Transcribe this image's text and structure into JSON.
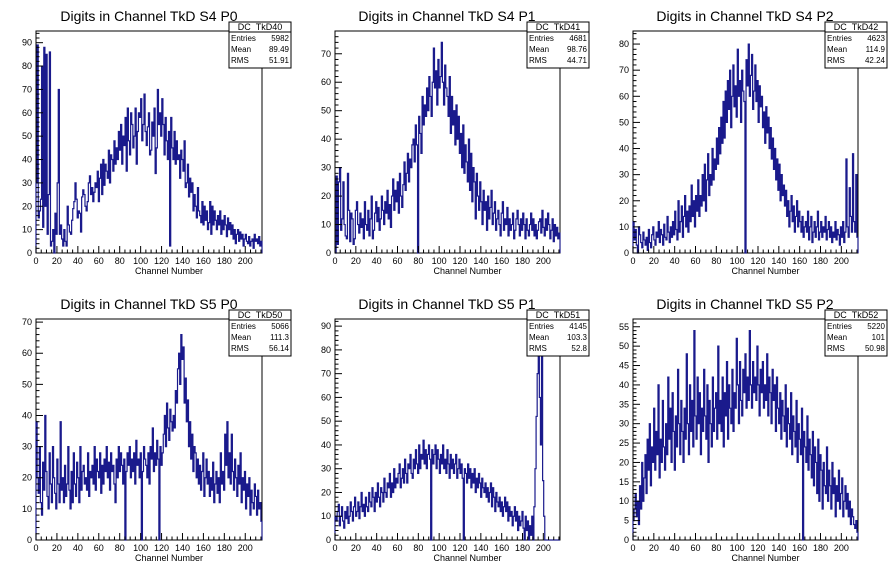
{
  "chart_data": [
    {
      "type": "histogram",
      "title": "Digits in Channel TkD S4 P0",
      "xlabel": "Channel Number",
      "stats": {
        "name": "DC_TkD40",
        "entries_label": "Entries",
        "entries": "5982",
        "mean_label": "Mean",
        "mean": "89.49",
        "rms_label": "RMS",
        "rms": "51.91"
      },
      "xlim": [
        0,
        216
      ],
      "ylim": [
        0,
        95
      ],
      "xticks": [
        "0",
        "20",
        "40",
        "60",
        "80",
        "100",
        "120",
        "140",
        "160",
        "180",
        "200"
      ],
      "yticks": [
        "0",
        "10",
        "20",
        "30",
        "40",
        "50",
        "60",
        "70",
        "80",
        "90"
      ],
      "color": "#1a1a8c",
      "values": [
        30,
        89,
        15,
        18,
        23,
        80,
        11,
        88,
        20,
        85,
        8,
        25,
        86,
        3,
        5,
        10,
        0,
        17,
        8,
        30,
        70,
        8,
        12,
        6,
        3,
        10,
        5,
        3,
        20,
        12,
        9,
        8,
        14,
        19,
        22,
        30,
        23,
        15,
        18,
        17,
        9,
        24,
        27,
        25,
        20,
        18,
        22,
        30,
        33,
        25,
        28,
        22,
        26,
        30,
        28,
        35,
        22,
        32,
        38,
        25,
        40,
        29,
        38,
        35,
        32,
        44,
        30,
        42,
        40,
        35,
        48,
        38,
        45,
        40,
        52,
        44,
        55,
        38,
        50,
        46,
        58,
        35,
        62,
        48,
        42,
        60,
        55,
        45,
        50,
        62,
        38,
        52,
        60,
        58,
        66,
        48,
        55,
        68,
        52,
        46,
        54,
        60,
        42,
        44,
        56,
        50,
        62,
        34,
        45,
        70,
        55,
        60,
        50,
        66,
        55,
        42,
        58,
        48,
        40,
        52,
        3,
        58,
        45,
        40,
        52,
        38,
        48,
        40,
        42,
        32,
        44,
        40,
        35,
        48,
        28,
        30,
        38,
        24,
        32,
        26,
        30,
        18,
        25,
        20,
        15,
        28,
        18,
        16,
        13,
        22,
        12,
        20,
        14,
        18,
        10,
        13,
        22,
        8,
        20,
        12,
        18,
        14,
        10,
        16,
        12,
        18,
        8,
        14,
        10,
        16,
        12,
        7,
        15,
        10,
        13,
        8,
        12,
        6,
        10,
        4,
        8,
        10,
        5,
        9,
        6,
        8,
        3,
        6,
        8,
        5,
        4,
        7,
        3,
        5,
        6,
        2,
        8,
        5,
        6,
        4,
        7,
        3,
        5
      ]
    },
    {
      "type": "histogram",
      "title": "Digits in Channel TkD S4 P1",
      "xlabel": "Channel Number",
      "stats": {
        "name": "DC_TkD41",
        "entries_label": "Entries",
        "entries": "4681",
        "mean_label": "Mean",
        "mean": "98.76",
        "rms_label": "RMS",
        "rms": "44.71"
      },
      "xlim": [
        0,
        216
      ],
      "ylim": [
        0,
        78
      ],
      "xticks": [
        "0",
        "20",
        "40",
        "60",
        "80",
        "100",
        "120",
        "140",
        "160",
        "180",
        "200"
      ],
      "yticks": [
        "0",
        "10",
        "20",
        "30",
        "40",
        "50",
        "60",
        "70"
      ],
      "color": "#1a1a8c",
      "values": [
        0,
        27,
        3,
        25,
        30,
        8,
        12,
        25,
        10,
        6,
        5,
        28,
        15,
        4,
        14,
        12,
        3,
        5,
        15,
        18,
        10,
        7,
        14,
        9,
        12,
        5,
        18,
        10,
        8,
        15,
        6,
        12,
        20,
        5,
        8,
        14,
        18,
        11,
        16,
        8,
        12,
        20,
        15,
        10,
        18,
        14,
        22,
        12,
        17,
        9,
        20,
        26,
        15,
        22,
        18,
        25,
        14,
        28,
        20,
        16,
        24,
        32,
        22,
        28,
        35,
        25,
        33,
        30,
        38,
        40,
        32,
        45,
        38,
        0,
        48,
        42,
        35,
        55,
        45,
        52,
        48,
        58,
        50,
        62,
        55,
        48,
        60,
        72,
        58,
        64,
        52,
        68,
        58,
        62,
        74,
        60,
        52,
        66,
        58,
        55,
        48,
        62,
        42,
        55,
        45,
        50,
        38,
        52,
        40,
        48,
        35,
        42,
        30,
        45,
        28,
        38,
        32,
        25,
        40,
        22,
        35,
        18,
        30,
        25,
        12,
        28,
        20,
        15,
        25,
        18,
        10,
        22,
        15,
        18,
        8,
        20,
        12,
        16,
        22,
        10,
        14,
        18,
        8,
        12,
        15,
        10,
        6,
        14,
        18,
        8,
        12,
        10,
        16,
        6,
        12,
        8,
        10,
        14,
        5,
        8,
        12,
        15,
        10,
        6,
        12,
        8,
        14,
        10,
        5,
        12,
        8,
        6,
        10,
        14,
        8,
        12,
        6,
        10,
        5,
        8,
        11,
        12,
        7,
        15,
        9,
        6,
        12,
        8,
        14,
        10,
        5,
        8,
        12,
        4,
        10,
        6,
        9,
        5,
        7
      ]
    },
    {
      "type": "histogram",
      "title": "Digits in Channel TkD S4 P2",
      "xlabel": "Channel Number",
      "stats": {
        "name": "DC_TkD42",
        "entries_label": "Entries",
        "entries": "4623",
        "mean_label": "Mean",
        "mean": "114.9",
        "rms_label": "RMS",
        "rms": "42.24"
      },
      "xlim": [
        0,
        216
      ],
      "ylim": [
        0,
        85
      ],
      "xticks": [
        "0",
        "20",
        "40",
        "60",
        "80",
        "100",
        "120",
        "140",
        "160",
        "180",
        "200"
      ],
      "yticks": [
        "0",
        "10",
        "20",
        "30",
        "40",
        "50",
        "60",
        "70",
        "80"
      ],
      "color": "#1a1a8c",
      "values": [
        12,
        5,
        9,
        3,
        0,
        10,
        7,
        4,
        2,
        8,
        5,
        3,
        6,
        1,
        9,
        4,
        2,
        7,
        10,
        5,
        3,
        8,
        6,
        12,
        4,
        9,
        7,
        3,
        11,
        6,
        5,
        14,
        8,
        4,
        10,
        6,
        12,
        7,
        16,
        9,
        5,
        20,
        8,
        12,
        18,
        6,
        14,
        22,
        10,
        16,
        8,
        18,
        12,
        26,
        14,
        20,
        10,
        22,
        16,
        28,
        14,
        22,
        18,
        30,
        20,
        34,
        16,
        28,
        38,
        22,
        30,
        26,
        40,
        28,
        36,
        32,
        44,
        34,
        48,
        38,
        52,
        42,
        58,
        44,
        62,
        50,
        66,
        55,
        70,
        48,
        60,
        72,
        56,
        64,
        52,
        78,
        60,
        66,
        50,
        70,
        62,
        58,
        0,
        74,
        64,
        80,
        60,
        68,
        76,
        55,
        62,
        72,
        58,
        66,
        50,
        64,
        56,
        60,
        48,
        54,
        42,
        56,
        46,
        52,
        40,
        48,
        36,
        44,
        32,
        40,
        28,
        36,
        24,
        34,
        20,
        30,
        22,
        26,
        18,
        24,
        14,
        20,
        10,
        16,
        22,
        12,
        18,
        8,
        14,
        20,
        10,
        16,
        12,
        8,
        14,
        6,
        10,
        12,
        8,
        16,
        5,
        10,
        14,
        4,
        8,
        12,
        6,
        10,
        16,
        5,
        8,
        12,
        6,
        10,
        8,
        14,
        5,
        9,
        12,
        6,
        10,
        4,
        8,
        6,
        12,
        5,
        9,
        7,
        3,
        10,
        6,
        12,
        4,
        8,
        36,
        10,
        6,
        25,
        14,
        8,
        38,
        12,
        8,
        30,
        6
      ]
    },
    {
      "type": "histogram",
      "title": "Digits in Channel TkD S5 P0",
      "xlabel": "Channel Number",
      "stats": {
        "name": "DC_TkD50",
        "entries_label": "Entries",
        "entries": "5066",
        "mean_label": "Mean",
        "mean": "111.3",
        "rms_label": "RMS",
        "rms": "56.14"
      },
      "xlim": [
        0,
        216
      ],
      "ylim": [
        0,
        71
      ],
      "xticks": [
        "0",
        "20",
        "40",
        "60",
        "80",
        "100",
        "120",
        "140",
        "160",
        "180",
        "200"
      ],
      "yticks": [
        "0",
        "10",
        "20",
        "30",
        "40",
        "50",
        "60",
        "70"
      ],
      "color": "#1a1a8c",
      "values": [
        38,
        20,
        15,
        30,
        12,
        8,
        25,
        16,
        40,
        22,
        14,
        10,
        28,
        18,
        12,
        30,
        20,
        15,
        10,
        26,
        18,
        12,
        38,
        16,
        20,
        12,
        24,
        14,
        18,
        30,
        16,
        10,
        22,
        12,
        28,
        18,
        14,
        25,
        20,
        12,
        30,
        16,
        22,
        24,
        18,
        20,
        16,
        28,
        14,
        22,
        20,
        24,
        18,
        30,
        16,
        26,
        22,
        20,
        28,
        15,
        24,
        18,
        26,
        22,
        30,
        20,
        25,
        16,
        28,
        22,
        24,
        18,
        12,
        26,
        20,
        30,
        22,
        28,
        24,
        18,
        26,
        0,
        22,
        28,
        24,
        30,
        20,
        26,
        22,
        28,
        18,
        32,
        24,
        26,
        20,
        28,
        0,
        22,
        30,
        26,
        24,
        20,
        28,
        18,
        30,
        26,
        36,
        22,
        28,
        24,
        32,
        26,
        0,
        30,
        24,
        28,
        34,
        40,
        30,
        44,
        36,
        32,
        42,
        38,
        35,
        40,
        36,
        48,
        44,
        55,
        60,
        50,
        66,
        58,
        62,
        44,
        52,
        38,
        45,
        30,
        38,
        26,
        34,
        22,
        30,
        28,
        20,
        26,
        18,
        24,
        16,
        22,
        28,
        14,
        20,
        26,
        18,
        22,
        14,
        20,
        16,
        25,
        12,
        18,
        22,
        15,
        20,
        12,
        28,
        18,
        22,
        16,
        34,
        24,
        38,
        20,
        28,
        18,
        34,
        22,
        16,
        26,
        20,
        14,
        24,
        18,
        28,
        12,
        20,
        16,
        22,
        10,
        18,
        14,
        20,
        8,
        16,
        12,
        10,
        18,
        14,
        8,
        16,
        10,
        12,
        6
      ]
    },
    {
      "type": "histogram",
      "title": "Digits in Channel TkD S5 P1",
      "xlabel": "Channel Number",
      "stats": {
        "name": "DC_TkD51",
        "entries_label": "Entries",
        "entries": "4145",
        "mean_label": "Mean",
        "mean": "103.3",
        "rms_label": "RMS",
        "rms": "52.8"
      },
      "xlim": [
        0,
        216
      ],
      "ylim": [
        0,
        93
      ],
      "xticks": [
        "0",
        "20",
        "40",
        "60",
        "80",
        "100",
        "120",
        "140",
        "160",
        "180",
        "200"
      ],
      "yticks": [
        "0",
        "10",
        "20",
        "30",
        "40",
        "50",
        "60",
        "70",
        "80",
        "90"
      ],
      "color": "#1a1a8c",
      "values": [
        10,
        8,
        12,
        15,
        6,
        10,
        14,
        8,
        5,
        12,
        9,
        14,
        7,
        10,
        16,
        12,
        8,
        14,
        18,
        10,
        12,
        16,
        9,
        14,
        20,
        12,
        15,
        10,
        18,
        14,
        12,
        20,
        16,
        14,
        22,
        18,
        12,
        20,
        16,
        24,
        18,
        14,
        22,
        20,
        16,
        26,
        20,
        18,
        24,
        22,
        28,
        18,
        24,
        20,
        30,
        22,
        26,
        24,
        28,
        32,
        22,
        26,
        30,
        24,
        34,
        28,
        24,
        32,
        30,
        36,
        28,
        26,
        34,
        30,
        38,
        32,
        28,
        40,
        30,
        36,
        34,
        42,
        32,
        38,
        30,
        36,
        40,
        34,
        0,
        38,
        32,
        36,
        40,
        30,
        38,
        34,
        28,
        36,
        32,
        40,
        30,
        34,
        28,
        38,
        32,
        26,
        36,
        30,
        34,
        28,
        32,
        36,
        26,
        30,
        34,
        28,
        32,
        26,
        0,
        30,
        28,
        24,
        32,
        26,
        30,
        22,
        28,
        24,
        30,
        20,
        26,
        22,
        28,
        24,
        18,
        26,
        22,
        20,
        24,
        18,
        22,
        16,
        20,
        24,
        14,
        22,
        18,
        12,
        20,
        16,
        14,
        18,
        12,
        16,
        10,
        14,
        18,
        12,
        16,
        8,
        14,
        10,
        12,
        6,
        10,
        14,
        8,
        12,
        4,
        10,
        6,
        8,
        12,
        5,
        0,
        10,
        4,
        8,
        0,
        6,
        2,
        10,
        0,
        14,
        30,
        52,
        70,
        90,
        60,
        40,
        80,
        25,
        10,
        0,
        0,
        0,
        0,
        0,
        0,
        0,
        0,
        0,
        0,
        0,
        0,
        0,
        0
      ]
    },
    {
      "type": "histogram",
      "title": "Digits in Channel TkD S5 P2",
      "xlabel": "Channel Number",
      "stats": {
        "name": "DC_TkD52",
        "entries_label": "Entries",
        "entries": "5220",
        "mean_label": "Mean",
        "mean": "101",
        "rms_label": "RMS",
        "rms": "50.98"
      },
      "xlim": [
        0,
        216
      ],
      "ylim": [
        0,
        57
      ],
      "xticks": [
        "0",
        "20",
        "40",
        "60",
        "80",
        "100",
        "120",
        "140",
        "160",
        "180",
        "200"
      ],
      "yticks": [
        "0",
        "5",
        "10",
        "15",
        "20",
        "25",
        "30",
        "35",
        "40",
        "45",
        "50",
        "55"
      ],
      "color": "#1a1a8c",
      "values": [
        5,
        8,
        12,
        6,
        10,
        4,
        14,
        8,
        20,
        10,
        16,
        22,
        12,
        26,
        18,
        30,
        14,
        24,
        20,
        34,
        18,
        28,
        22,
        40,
        16,
        26,
        20,
        36,
        24,
        18,
        30,
        22,
        42,
        26,
        34,
        20,
        38,
        28,
        18,
        32,
        24,
        44,
        30,
        22,
        36,
        28,
        20,
        34,
        26,
        48,
        30,
        22,
        40,
        28,
        36,
        24,
        54,
        32,
        26,
        42,
        30,
        38,
        22,
        34,
        28,
        44,
        32,
        26,
        40,
        20,
        36,
        30,
        24,
        42,
        28,
        34,
        38,
        26,
        50,
        30,
        36,
        28,
        42,
        24,
        38,
        32,
        46,
        26,
        40,
        34,
        30,
        44,
        28,
        38,
        34,
        52,
        40,
        30,
        46,
        36,
        32,
        44,
        38,
        48,
        34,
        42,
        36,
        54,
        40,
        34,
        46,
        38,
        42,
        36,
        50,
        40,
        32,
        44,
        38,
        46,
        34,
        40,
        36,
        48,
        32,
        42,
        38,
        30,
        44,
        36,
        40,
        28,
        42,
        34,
        30,
        38,
        26,
        36,
        32,
        28,
        40,
        24,
        34,
        30,
        26,
        38,
        22,
        32,
        28,
        24,
        36,
        20,
        30,
        26,
        22,
        34,
        0,
        28,
        24,
        20,
        32,
        18,
        26,
        22,
        16,
        28,
        14,
        24,
        20,
        12,
        26,
        10,
        22,
        18,
        8,
        20,
        14,
        12,
        24,
        10,
        18,
        14,
        8,
        20,
        12,
        16,
        6,
        14,
        10,
        18,
        8,
        12,
        16,
        6,
        10,
        14,
        8,
        12,
        6,
        10,
        4,
        8,
        6,
        4,
        3,
        5,
        2
      ]
    }
  ]
}
